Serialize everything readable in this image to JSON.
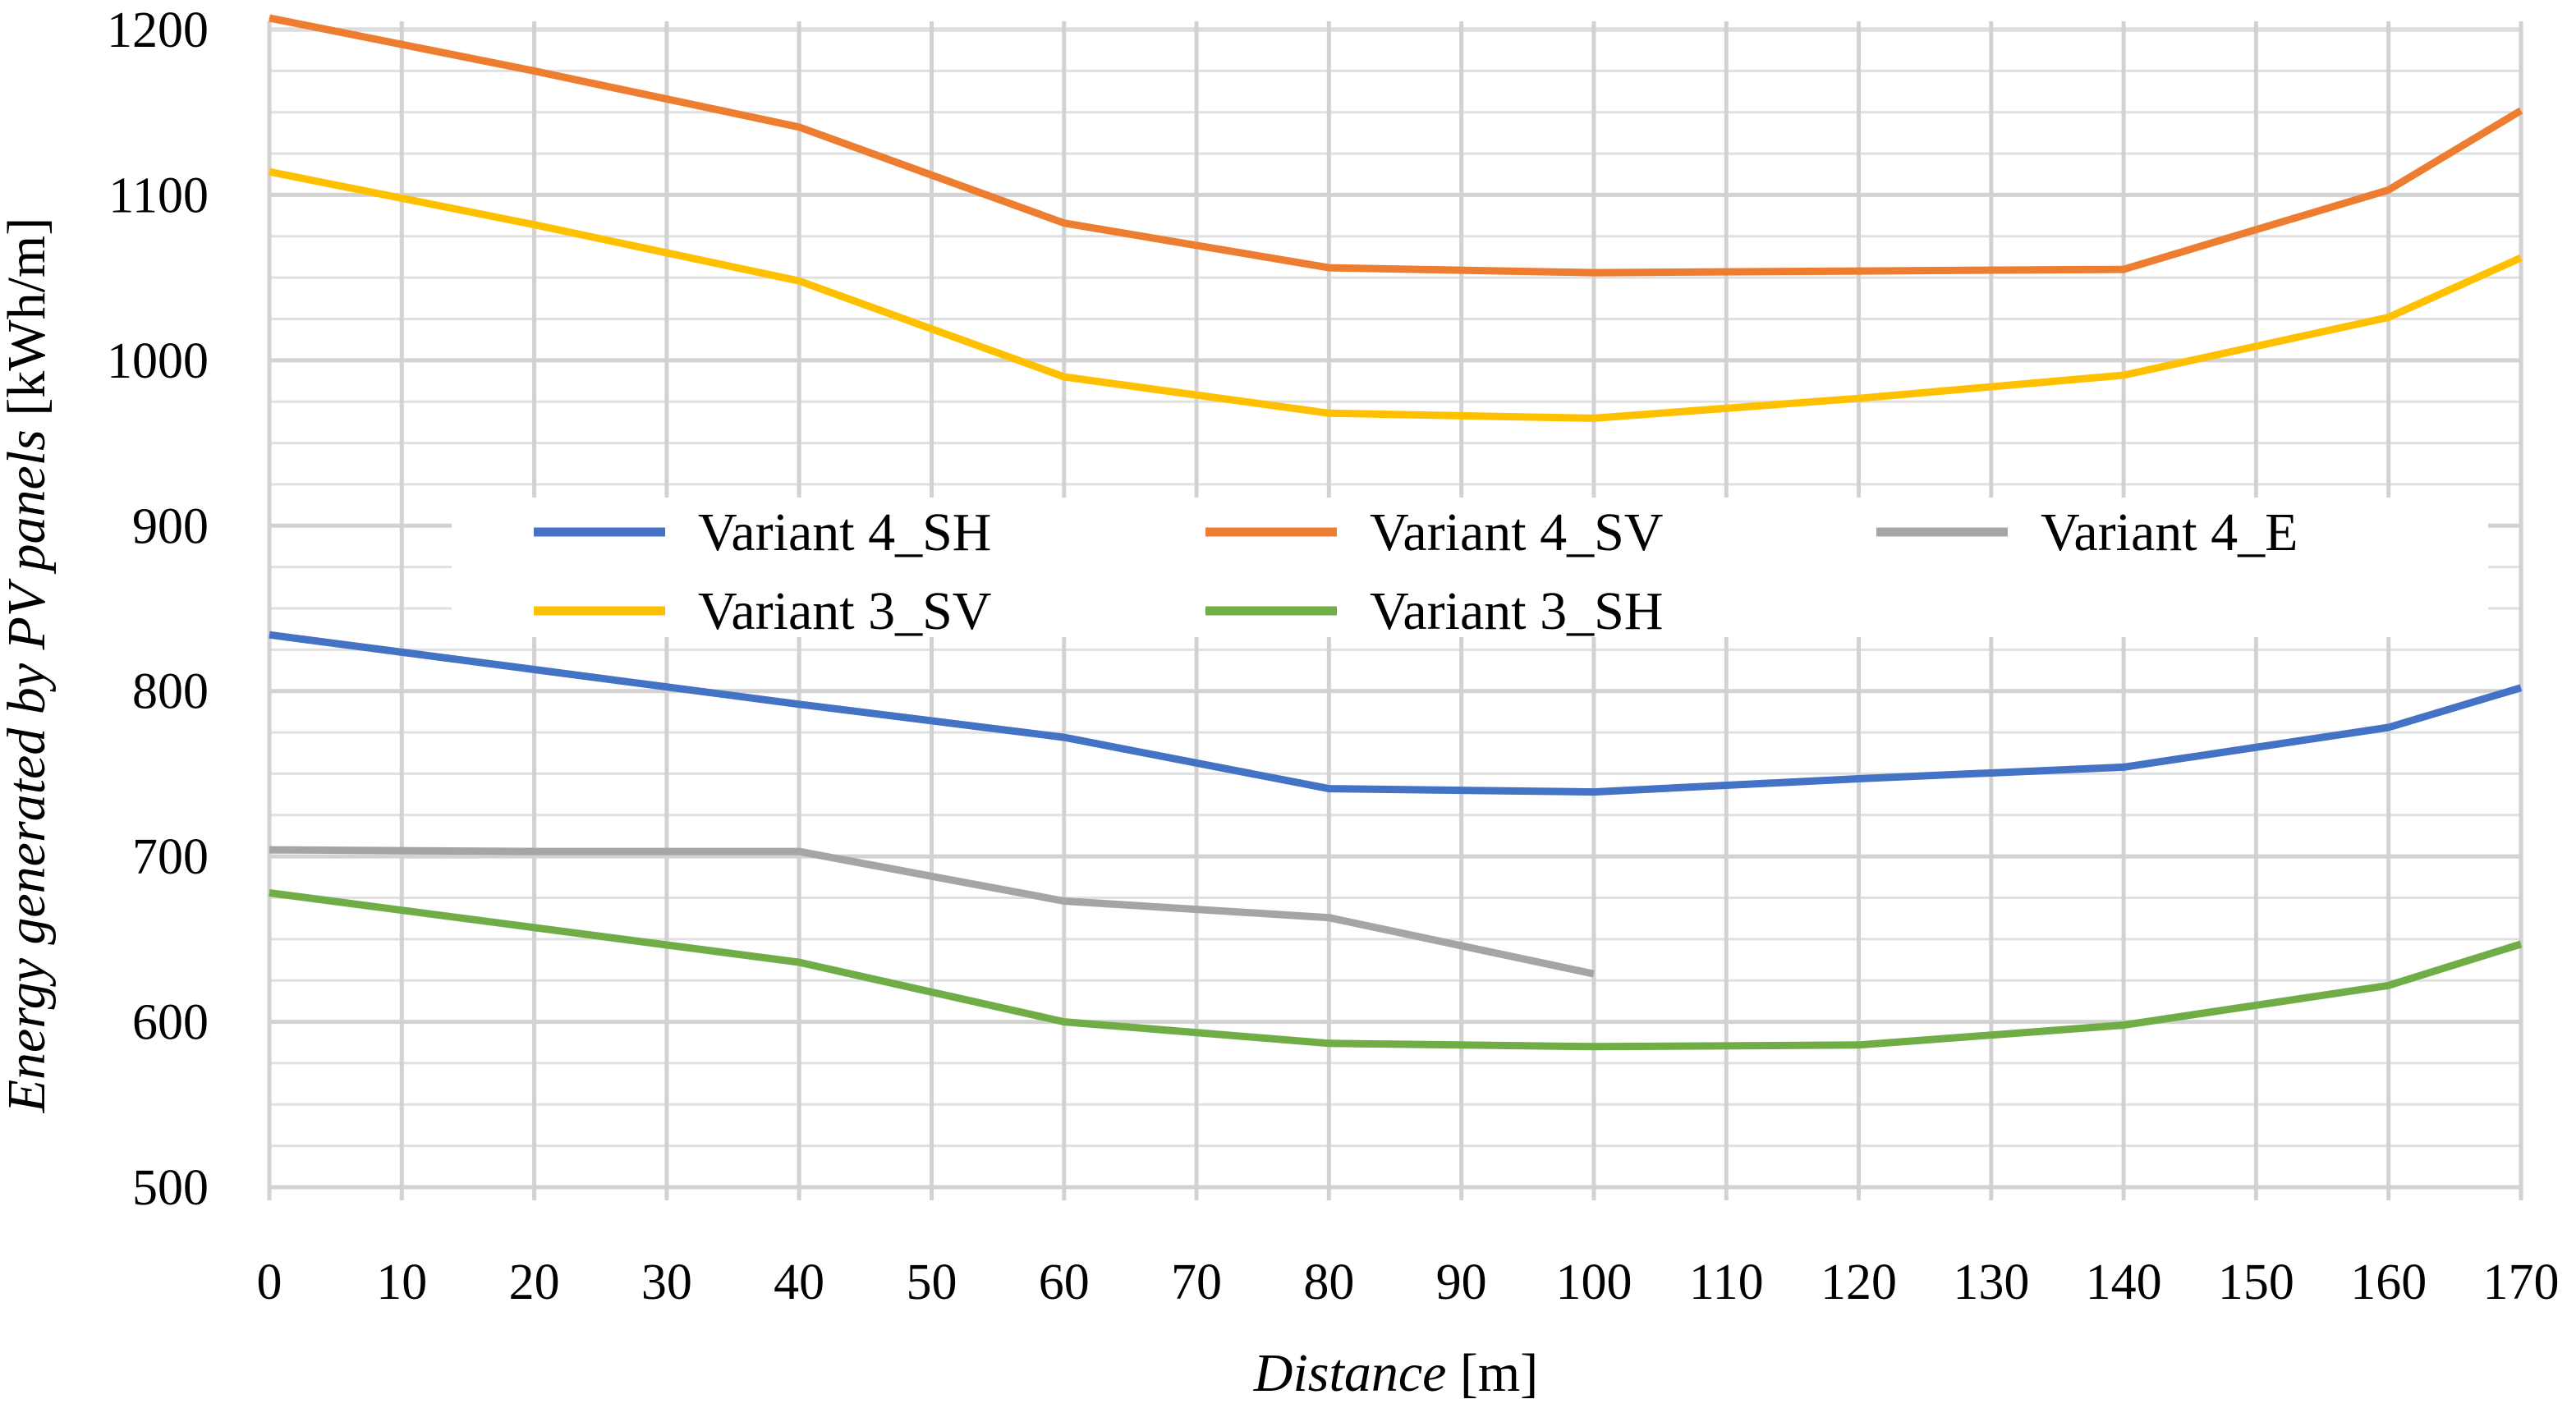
{
  "chart_data": {
    "type": "line",
    "title": "",
    "xlabel": {
      "italic": "Distance",
      "unit": "[m]"
    },
    "ylabel": {
      "italic": "Energy generated by PV panels",
      "unit": "[kWh/m]"
    },
    "xlim": [
      0,
      170
    ],
    "ylim": [
      500,
      1200
    ],
    "x_ticks": [
      0,
      10,
      20,
      30,
      40,
      50,
      60,
      70,
      80,
      90,
      100,
      110,
      120,
      130,
      140,
      150,
      160,
      170
    ],
    "y_ticks": [
      500,
      600,
      700,
      800,
      900,
      1000,
      1100,
      1200
    ],
    "grid": {
      "major": true,
      "minor": true
    },
    "legend_position": "center",
    "series": [
      {
        "name": "Variant 4_SH",
        "color": "#4472C4",
        "x": [
          0,
          20,
          40,
          60,
          80,
          100,
          120,
          140,
          160,
          170
        ],
        "y": [
          834,
          813,
          792,
          772,
          741,
          739,
          747,
          754,
          778,
          802
        ]
      },
      {
        "name": "Variant 4_SV",
        "color": "#ED7D31",
        "x": [
          0,
          20,
          40,
          60,
          80,
          100,
          120,
          140,
          160,
          170
        ],
        "y": [
          1207,
          1175,
          1141,
          1083,
          1056,
          1053,
          1054,
          1055,
          1103,
          1151
        ]
      },
      {
        "name": "Variant 4_E",
        "color": "#A5A5A5",
        "x": [
          0,
          20,
          40,
          60,
          80,
          100
        ],
        "y": [
          704,
          703,
          703,
          673,
          663,
          629
        ]
      },
      {
        "name": "Variant 3_SV",
        "color": "#FFC000",
        "x": [
          0,
          20,
          40,
          60,
          80,
          100,
          120,
          140,
          160,
          170
        ],
        "y": [
          1114,
          1082,
          1048,
          990,
          968,
          965,
          977,
          991,
          1026,
          1062
        ]
      },
      {
        "name": "Variant 3_SH",
        "color": "#70AD47",
        "x": [
          0,
          20,
          40,
          60,
          80,
          100,
          120,
          140,
          160,
          170
        ],
        "y": [
          678,
          657,
          636,
          600,
          587,
          585,
          586,
          598,
          622,
          647
        ]
      }
    ]
  }
}
